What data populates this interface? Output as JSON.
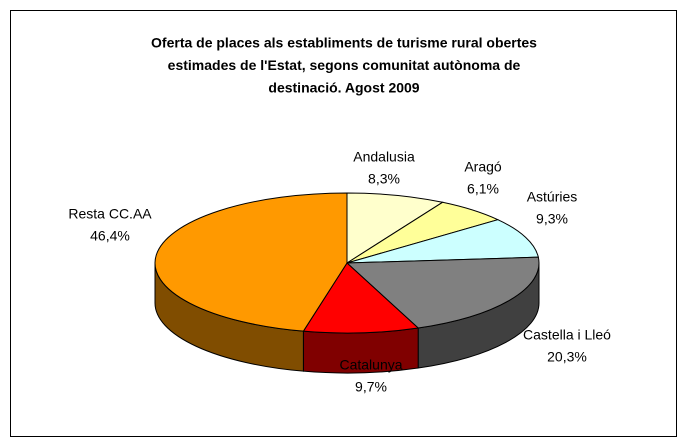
{
  "chart_data": {
    "type": "pie3d",
    "title": [
      "Oferta de places als establiments de turisme rural obertes",
      "estimades de l'Estat, segons comunitat autònoma de",
      "destinació. Agost 2009"
    ],
    "categories": [
      "Andalusia",
      "Aragó",
      "Astúries",
      "Castella i Lleó",
      "Catalunya",
      "Resta CC.AA"
    ],
    "values": [
      8.3,
      6.1,
      9.3,
      20.3,
      9.7,
      46.4
    ],
    "value_labels": [
      "8,3%",
      "6,1%",
      "9,3%",
      "20,3%",
      "9,7%",
      "46,4%"
    ],
    "colors": [
      "#ffffcc",
      "#ffff99",
      "#ccffff",
      "#808080",
      "#ff0000",
      "#ff9900"
    ]
  }
}
